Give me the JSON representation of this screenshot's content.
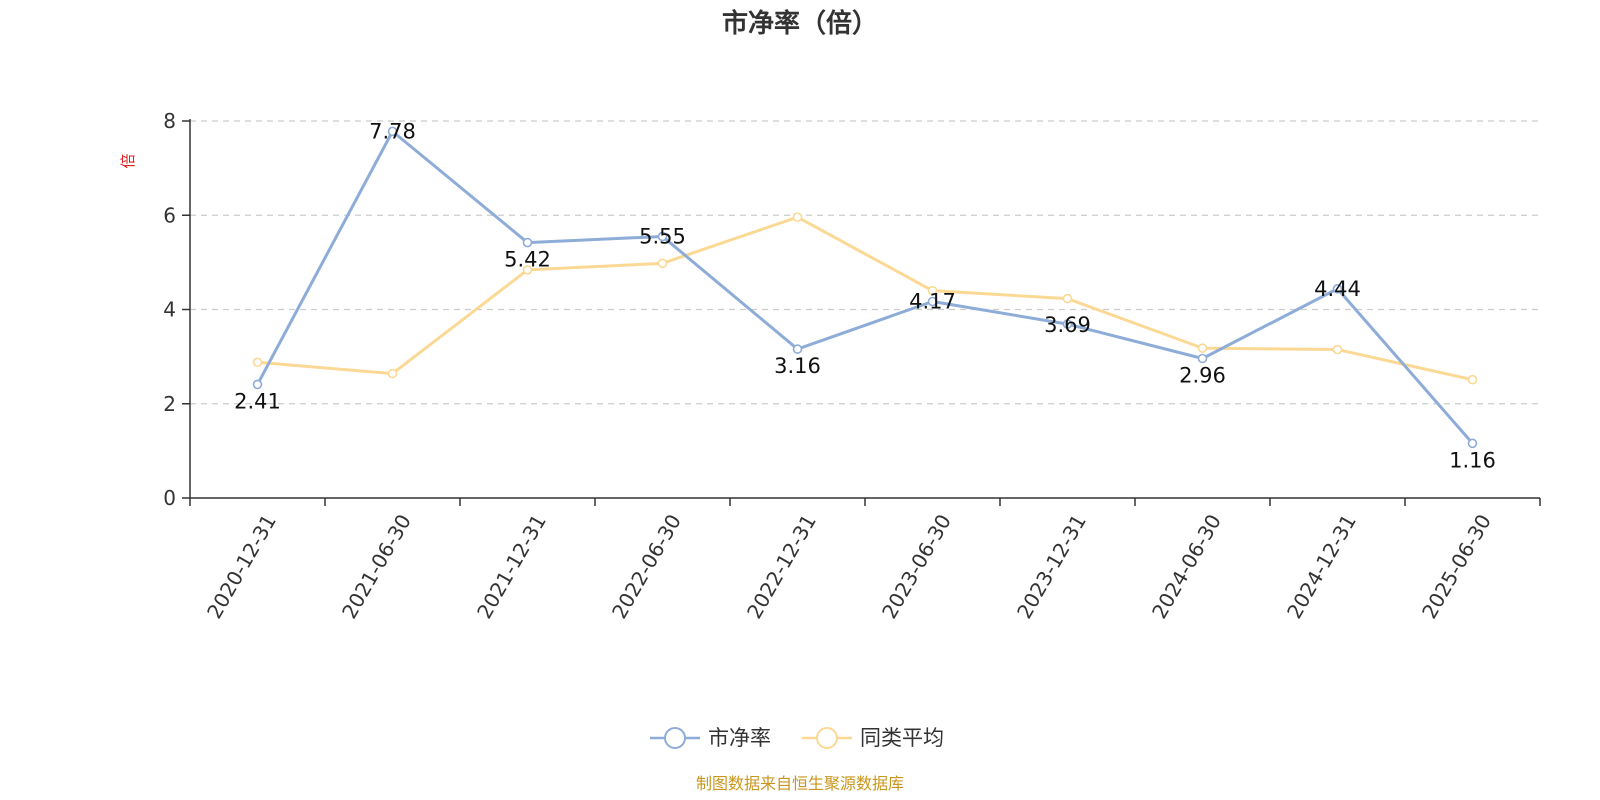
{
  "chart_data": {
    "type": "line",
    "title": "市净率（倍）",
    "ylabel": "倍",
    "xlabel": "",
    "categories": [
      "2020-12-31",
      "2021-06-30",
      "2021-12-31",
      "2022-06-30",
      "2022-12-31",
      "2023-06-30",
      "2023-12-31",
      "2024-06-30",
      "2024-12-31",
      "2025-06-30"
    ],
    "ylim": [
      0,
      8
    ],
    "yticks": [
      0,
      2,
      4,
      6,
      8
    ],
    "grid": true,
    "legend_position": "bottom-center",
    "series": [
      {
        "name": "市净率",
        "color": "#8eacd8",
        "values": [
          2.41,
          7.78,
          5.42,
          5.55,
          3.16,
          4.17,
          3.69,
          2.96,
          4.44,
          1.16
        ],
        "show_labels": true
      },
      {
        "name": "同类平均",
        "color": "#fbd994",
        "values": [
          2.88,
          2.64,
          4.84,
          4.98,
          5.96,
          4.4,
          4.23,
          3.18,
          3.15,
          2.51
        ],
        "show_labels": false
      }
    ],
    "source": "制图数据来自恒生聚源数据库"
  }
}
